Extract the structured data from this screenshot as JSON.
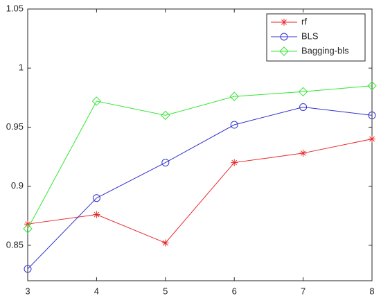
{
  "chart_data": {
    "type": "line",
    "x": [
      3,
      4,
      5,
      6,
      7,
      8
    ],
    "series": [
      {
        "name": "rf",
        "color": "#e8272a",
        "marker": "star",
        "values": [
          0.868,
          0.876,
          0.852,
          0.92,
          0.928,
          0.94
        ]
      },
      {
        "name": "BLS",
        "color": "#3030d0",
        "marker": "circle",
        "values": [
          0.83,
          0.89,
          0.92,
          0.952,
          0.967,
          0.96
        ]
      },
      {
        "name": "Bagging-bls",
        "color": "#33e633",
        "marker": "diamond",
        "values": [
          0.864,
          0.972,
          0.96,
          0.976,
          0.98,
          0.985
        ]
      }
    ],
    "xlim": [
      3,
      8
    ],
    "xticks": [
      3,
      4,
      5,
      6,
      7,
      8
    ],
    "ylim": [
      0.82,
      1.05
    ],
    "yticks": [
      0.85,
      0.9,
      0.95,
      1,
      1.05
    ],
    "grid": false,
    "legend": "top-right"
  }
}
